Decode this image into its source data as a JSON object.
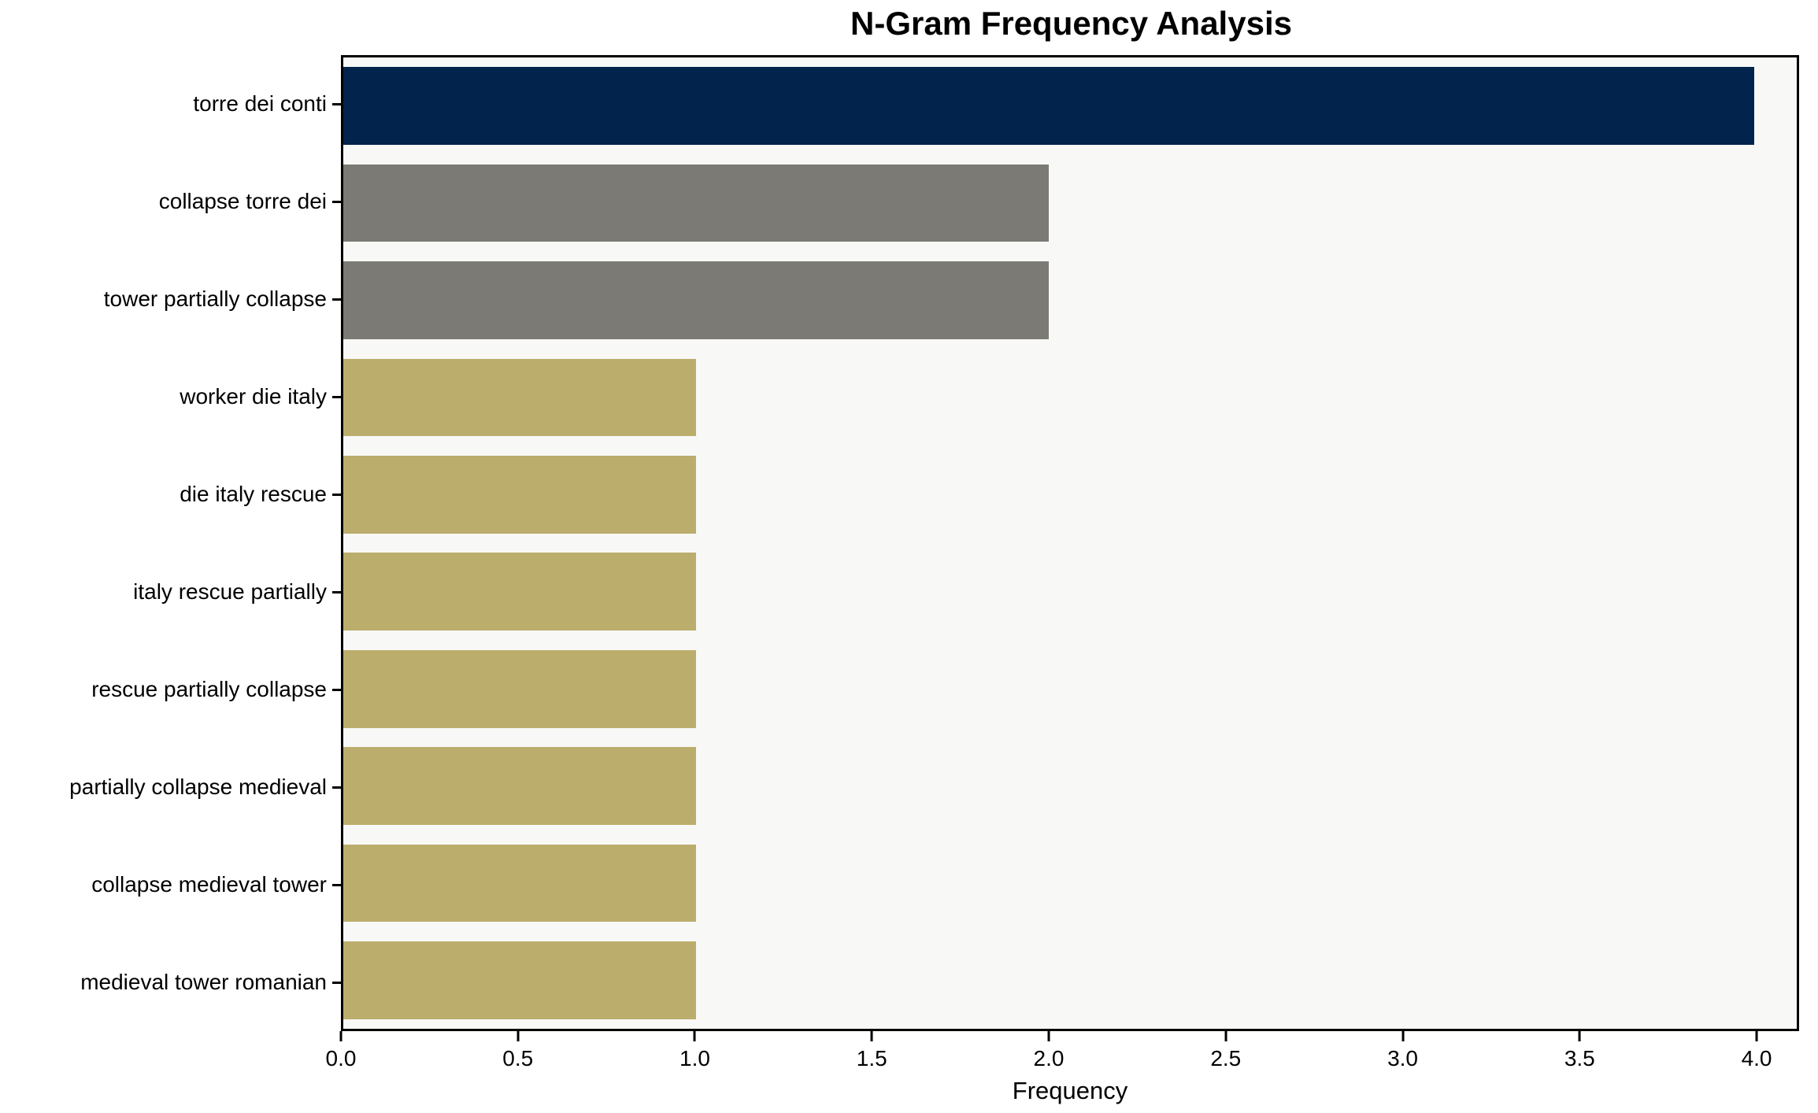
{
  "chart_data": {
    "type": "bar",
    "orientation": "horizontal",
    "title": "N-Gram Frequency Analysis",
    "xlabel": "Frequency",
    "ylabel": "",
    "categories": [
      "torre dei conti",
      "collapse torre dei",
      "tower partially collapse",
      "worker die italy",
      "die italy rescue",
      "italy rescue partially",
      "rescue partially collapse",
      "partially collapse medieval",
      "collapse medieval tower",
      "medieval tower romanian"
    ],
    "values": [
      4,
      2,
      2,
      1,
      1,
      1,
      1,
      1,
      1,
      1
    ],
    "bar_colors": [
      "#02234c",
      "#7b7a74",
      "#7b7a74",
      "#bbad6c",
      "#bbad6c",
      "#bbad6c",
      "#bbad6c",
      "#bbad6c",
      "#bbad6c",
      "#bbad6c"
    ],
    "xlim": [
      0,
      4.12
    ],
    "x_tick_values": [
      0,
      0.5,
      1,
      1.5,
      2,
      2.5,
      3,
      3.5,
      4
    ],
    "x_tick_labels": [
      "0.0",
      "0.5",
      "1.0",
      "1.5",
      "2.0",
      "2.5",
      "3.0",
      "3.5",
      "4.0"
    ],
    "grid": false,
    "legend": null,
    "bar_height_fraction": 0.8,
    "colors": {
      "plot_background": "#f8f8f6",
      "figure_background": "#ffffff",
      "spine": "#000000",
      "text": "#000000"
    }
  }
}
